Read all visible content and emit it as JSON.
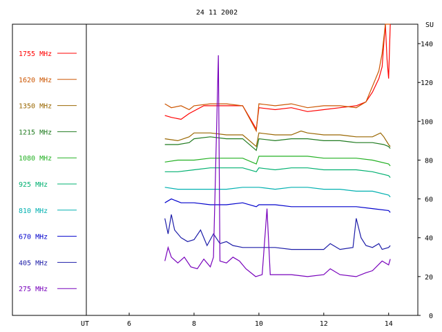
{
  "chart_data": {
    "type": "line",
    "title": "24 11 2002",
    "x_start_label": "UT",
    "x_ticks": [
      6,
      8,
      10,
      12,
      14
    ],
    "xlim": [
      4.7,
      14.9
    ],
    "y_unit": "SU",
    "y_ticks": [
      0,
      20,
      40,
      60,
      80,
      100,
      120,
      140
    ],
    "ylim": [
      0,
      150
    ],
    "grid": false,
    "legend_position": "left",
    "series": [
      {
        "name": "1755 MHz",
        "color": "#ff0000",
        "points": [
          [
            7.1,
            103
          ],
          [
            7.3,
            102
          ],
          [
            7.6,
            101
          ],
          [
            7.85,
            104
          ],
          [
            8.3,
            108
          ],
          [
            9.0,
            108
          ],
          [
            9.5,
            108
          ],
          [
            9.92,
            96
          ],
          [
            10.0,
            107
          ],
          [
            10.5,
            106
          ],
          [
            11.0,
            107
          ],
          [
            11.5,
            105
          ],
          [
            12.0,
            106
          ],
          [
            12.5,
            107
          ],
          [
            13.0,
            108
          ],
          [
            13.3,
            110
          ],
          [
            13.5,
            115
          ],
          [
            13.7,
            122
          ],
          [
            13.8,
            128
          ],
          [
            13.85,
            140
          ],
          [
            13.9,
            150
          ],
          [
            13.95,
            132
          ],
          [
            14.0,
            122
          ],
          [
            14.05,
            150
          ]
        ]
      },
      {
        "name": "1620 MHz",
        "color": "#cc5500",
        "points": [
          [
            7.1,
            109
          ],
          [
            7.3,
            107
          ],
          [
            7.6,
            108
          ],
          [
            7.85,
            106
          ],
          [
            8.0,
            108
          ],
          [
            8.5,
            109
          ],
          [
            9.0,
            109
          ],
          [
            9.5,
            108
          ],
          [
            9.92,
            95
          ],
          [
            10.0,
            109
          ],
          [
            10.5,
            108
          ],
          [
            11.0,
            109
          ],
          [
            11.5,
            107
          ],
          [
            12.0,
            108
          ],
          [
            12.5,
            108
          ],
          [
            13.0,
            107
          ],
          [
            13.3,
            110
          ],
          [
            13.5,
            118
          ],
          [
            13.7,
            126
          ],
          [
            13.8,
            135
          ],
          [
            13.9,
            150
          ],
          [
            14.0,
            150
          ],
          [
            14.05,
            150
          ]
        ]
      },
      {
        "name": "1350 MHz",
        "color": "#996600",
        "points": [
          [
            7.1,
            91
          ],
          [
            7.5,
            90
          ],
          [
            7.85,
            92
          ],
          [
            8.0,
            94
          ],
          [
            8.5,
            94
          ],
          [
            9.0,
            93
          ],
          [
            9.5,
            93
          ],
          [
            9.92,
            87
          ],
          [
            10.0,
            94
          ],
          [
            10.5,
            93
          ],
          [
            11.0,
            93
          ],
          [
            11.3,
            95
          ],
          [
            11.5,
            94
          ],
          [
            12.0,
            93
          ],
          [
            12.5,
            93
          ],
          [
            13.0,
            92
          ],
          [
            13.5,
            92
          ],
          [
            13.75,
            94
          ],
          [
            13.85,
            92
          ],
          [
            14.0,
            88
          ],
          [
            14.05,
            87
          ]
        ]
      },
      {
        "name": "1215 MHz",
        "color": "#1f7a1f",
        "points": [
          [
            7.1,
            88
          ],
          [
            7.5,
            88
          ],
          [
            7.85,
            89
          ],
          [
            8.0,
            91
          ],
          [
            8.5,
            92
          ],
          [
            9.0,
            91
          ],
          [
            9.5,
            91
          ],
          [
            9.92,
            85
          ],
          [
            10.0,
            91
          ],
          [
            10.5,
            90
          ],
          [
            11.0,
            91
          ],
          [
            11.5,
            91
          ],
          [
            12.0,
            90
          ],
          [
            12.5,
            90
          ],
          [
            13.0,
            89
          ],
          [
            13.5,
            89
          ],
          [
            13.85,
            88
          ],
          [
            14.0,
            87
          ],
          [
            14.05,
            86
          ]
        ]
      },
      {
        "name": "1080 MHz",
        "color": "#22b022",
        "points": [
          [
            7.1,
            79
          ],
          [
            7.5,
            80
          ],
          [
            8.0,
            80
          ],
          [
            8.5,
            81
          ],
          [
            9.0,
            81
          ],
          [
            9.5,
            81
          ],
          [
            9.92,
            78
          ],
          [
            10.0,
            82
          ],
          [
            10.5,
            82
          ],
          [
            11.0,
            82
          ],
          [
            11.5,
            82
          ],
          [
            12.0,
            81
          ],
          [
            12.5,
            81
          ],
          [
            13.0,
            81
          ],
          [
            13.5,
            80
          ],
          [
            14.0,
            78
          ],
          [
            14.05,
            77
          ]
        ]
      },
      {
        "name": "925 MHz",
        "color": "#00b070",
        "points": [
          [
            7.1,
            74
          ],
          [
            7.5,
            74
          ],
          [
            8.0,
            75
          ],
          [
            8.5,
            76
          ],
          [
            9.0,
            76
          ],
          [
            9.5,
            76
          ],
          [
            9.92,
            74
          ],
          [
            10.0,
            76
          ],
          [
            10.5,
            75
          ],
          [
            11.0,
            76
          ],
          [
            11.5,
            76
          ],
          [
            12.0,
            75
          ],
          [
            12.5,
            75
          ],
          [
            13.0,
            75
          ],
          [
            13.5,
            74
          ],
          [
            14.0,
            72
          ],
          [
            14.05,
            71
          ]
        ]
      },
      {
        "name": "810 MHz",
        "color": "#00b0b0",
        "points": [
          [
            7.1,
            66
          ],
          [
            7.5,
            65
          ],
          [
            8.0,
            65
          ],
          [
            8.5,
            65
          ],
          [
            9.0,
            65
          ],
          [
            9.5,
            66
          ],
          [
            10.0,
            66
          ],
          [
            10.5,
            65
          ],
          [
            11.0,
            66
          ],
          [
            11.5,
            66
          ],
          [
            12.0,
            65
          ],
          [
            12.5,
            65
          ],
          [
            13.0,
            64
          ],
          [
            13.5,
            64
          ],
          [
            14.0,
            62
          ],
          [
            14.05,
            61
          ]
        ]
      },
      {
        "name": "670 MHz",
        "color": "#0000cc",
        "points": [
          [
            7.1,
            58
          ],
          [
            7.3,
            60
          ],
          [
            7.6,
            58
          ],
          [
            8.0,
            58
          ],
          [
            8.5,
            57
          ],
          [
            9.0,
            57
          ],
          [
            9.5,
            58
          ],
          [
            9.92,
            56
          ],
          [
            10.0,
            57
          ],
          [
            10.5,
            57
          ],
          [
            11.0,
            56
          ],
          [
            11.5,
            56
          ],
          [
            12.0,
            56
          ],
          [
            12.5,
            56
          ],
          [
            13.0,
            56
          ],
          [
            13.5,
            55
          ],
          [
            14.0,
            54
          ],
          [
            14.05,
            53
          ]
        ]
      },
      {
        "name": "405 MHz",
        "color": "#1c1ca8",
        "points": [
          [
            7.1,
            50
          ],
          [
            7.2,
            42
          ],
          [
            7.3,
            52
          ],
          [
            7.4,
            44
          ],
          [
            7.6,
            40
          ],
          [
            7.8,
            38
          ],
          [
            8.0,
            39
          ],
          [
            8.2,
            44
          ],
          [
            8.4,
            36
          ],
          [
            8.6,
            42
          ],
          [
            8.8,
            37
          ],
          [
            9.0,
            38
          ],
          [
            9.2,
            36
          ],
          [
            9.5,
            35
          ],
          [
            9.9,
            35
          ],
          [
            10.2,
            35
          ],
          [
            10.5,
            35
          ],
          [
            11.0,
            34
          ],
          [
            11.5,
            34
          ],
          [
            12.0,
            34
          ],
          [
            12.2,
            37
          ],
          [
            12.5,
            34
          ],
          [
            12.9,
            35
          ],
          [
            13.0,
            50
          ],
          [
            13.15,
            40
          ],
          [
            13.3,
            36
          ],
          [
            13.5,
            35
          ],
          [
            13.7,
            37
          ],
          [
            13.8,
            34
          ],
          [
            14.0,
            35
          ],
          [
            14.05,
            36
          ]
        ]
      },
      {
        "name": "275 MHz",
        "color": "#7700bb",
        "points": [
          [
            7.1,
            28
          ],
          [
            7.2,
            35
          ],
          [
            7.3,
            30
          ],
          [
            7.5,
            27
          ],
          [
            7.7,
            30
          ],
          [
            7.9,
            25
          ],
          [
            8.1,
            24
          ],
          [
            8.3,
            29
          ],
          [
            8.5,
            25
          ],
          [
            8.6,
            30
          ],
          [
            8.75,
            134
          ],
          [
            8.8,
            28
          ],
          [
            9.0,
            27
          ],
          [
            9.2,
            30
          ],
          [
            9.4,
            28
          ],
          [
            9.6,
            24
          ],
          [
            9.9,
            20
          ],
          [
            10.1,
            21
          ],
          [
            10.25,
            55
          ],
          [
            10.35,
            21
          ],
          [
            10.6,
            21
          ],
          [
            11.0,
            21
          ],
          [
            11.5,
            20
          ],
          [
            12.0,
            21
          ],
          [
            12.2,
            24
          ],
          [
            12.5,
            21
          ],
          [
            13.0,
            20
          ],
          [
            13.3,
            22
          ],
          [
            13.5,
            23
          ],
          [
            13.8,
            28
          ],
          [
            14.0,
            26
          ],
          [
            14.05,
            29
          ]
        ]
      }
    ]
  }
}
